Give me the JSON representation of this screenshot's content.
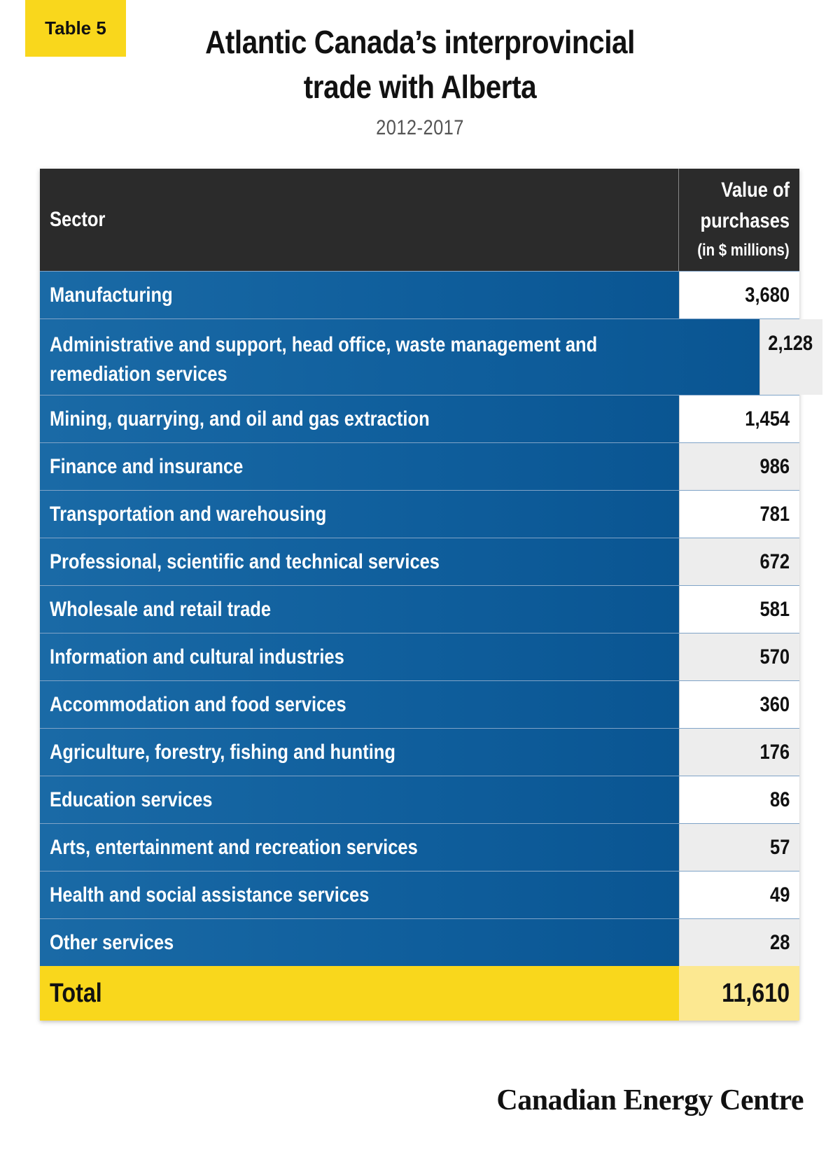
{
  "badge": "Table 5",
  "title_line1": "Atlantic Canada’s interprovincial",
  "title_line2": "trade with Alberta",
  "subtitle": "2012-2017",
  "chart_data": {
    "type": "table",
    "columns": {
      "sector": "Sector",
      "value_line1": "Value of",
      "value_line2": "purchases",
      "value_unit": "(in $ millions)"
    },
    "rows": [
      {
        "sector": "Manufacturing",
        "value": "3,680"
      },
      {
        "sector": "Administrative and support, head office, waste management and remediation services",
        "value": "2,128"
      },
      {
        "sector": "Mining, quarrying, and oil and gas extraction",
        "value": "1,454"
      },
      {
        "sector": "Finance and insurance",
        "value": "986"
      },
      {
        "sector": "Transportation and warehousing",
        "value": "781"
      },
      {
        "sector": "Professional, scientific and technical services",
        "value": "672"
      },
      {
        "sector": "Wholesale and retail trade",
        "value": "581"
      },
      {
        "sector": "Information and cultural industries",
        "value": "570"
      },
      {
        "sector": "Accommodation and food services",
        "value": "360"
      },
      {
        "sector": "Agriculture, forestry, fishing and hunting",
        "value": "176"
      },
      {
        "sector": "Education services",
        "value": "86"
      },
      {
        "sector": "Arts, entertainment and recreation services",
        "value": "57"
      },
      {
        "sector": "Health and social assistance services",
        "value": "49"
      },
      {
        "sector": "Other services",
        "value": "28"
      }
    ],
    "total": {
      "label": "Total",
      "value": "11,610"
    }
  },
  "brand": "Canadian Energy Centre",
  "colors": {
    "accent_yellow": "#f9d71c",
    "row_blue": "#0f5e9c",
    "header_dark": "#2b2b2b"
  }
}
